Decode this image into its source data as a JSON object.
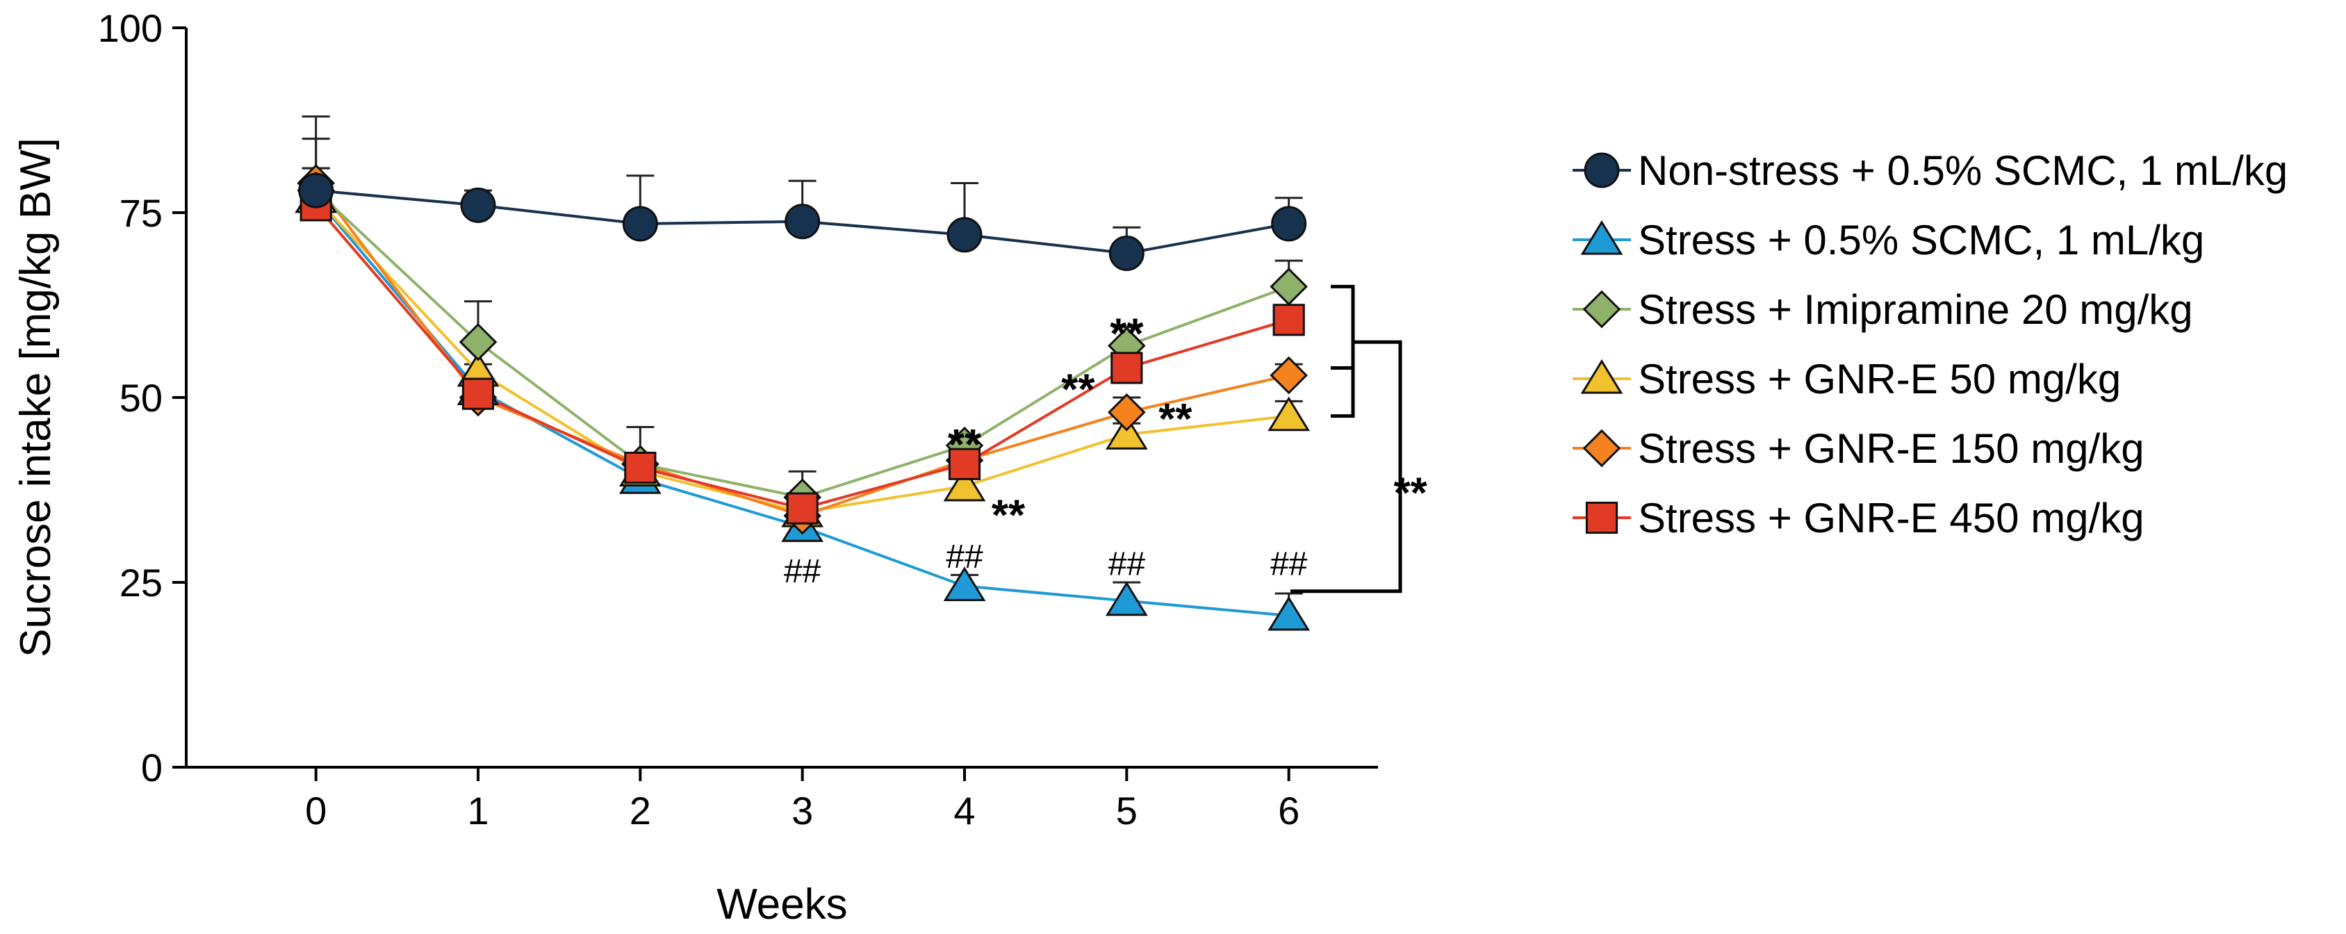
{
  "chart_data": {
    "type": "line",
    "title": "",
    "xlabel": "Weeks",
    "ylabel": "Sucrose intake [mg/kg BW]",
    "x": [
      0,
      1,
      2,
      3,
      4,
      5,
      6
    ],
    "x_ticks": [
      "0",
      "1",
      "2",
      "3",
      "4",
      "5",
      "6"
    ],
    "xlim": [
      -0.8,
      6.55
    ],
    "ylim": [
      0,
      100
    ],
    "y_ticks": [
      "0",
      "25",
      "50",
      "75",
      "100"
    ],
    "grid": false,
    "legend_position": "right",
    "series": [
      {
        "name": "Non-stress + 0.5% SCMC, 1 mL/kg",
        "marker": "circle",
        "color": "#17324f",
        "values": [
          78,
          76,
          73.5,
          73.8,
          72,
          69.5,
          73.5
        ],
        "errors": [
          10,
          2,
          6.5,
          5.5,
          7,
          3.5,
          3.5
        ]
      },
      {
        "name": "Stress + 0.5% SCMC, 1 mL/kg",
        "marker": "triangle",
        "color": "#1f9ad6",
        "values": [
          77,
          51,
          39,
          32.5,
          24.5,
          22.5,
          20.5
        ],
        "errors": [
          8,
          1.5,
          2,
          1,
          1.5,
          2.5,
          3
        ]
      },
      {
        "name": "Stress + Imipramine 20 mg/kg",
        "marker": "diamond",
        "color": "#8fb26a",
        "values": [
          78,
          57.5,
          41,
          36.5,
          43.5,
          57,
          65
        ],
        "errors": [
          3,
          5.5,
          1.5,
          3.5,
          1,
          2.5,
          3.5
        ]
      },
      {
        "name": "Stress + GNR-E 50 mg/kg",
        "marker": "triangle",
        "color": "#f2c12e",
        "values": [
          77,
          53.5,
          40,
          34.5,
          38,
          45,
          47.5
        ],
        "errors": [
          2,
          1,
          1,
          1,
          1.5,
          1.5,
          2
        ]
      },
      {
        "name": "Stress + GNR-E 150 mg/kg",
        "marker": "diamond",
        "color": "#f5821f",
        "values": [
          79,
          50,
          41,
          34,
          41.5,
          48,
          53
        ],
        "errors": [
          2,
          1,
          1,
          1,
          1,
          2,
          1.5
        ]
      },
      {
        "name": "Stress + GNR-E 450 mg/kg",
        "marker": "square",
        "color": "#e23b25",
        "values": [
          76,
          50.5,
          40.5,
          35,
          41,
          54,
          60.5
        ],
        "errors": [
          2,
          1,
          5.5,
          1.5,
          1,
          1.5,
          2
        ]
      }
    ],
    "annotations": [
      {
        "text": "##",
        "x": 3,
        "y": 26.5,
        "type": "hash"
      },
      {
        "text": "##",
        "x": 4,
        "y": 28.5,
        "type": "hash"
      },
      {
        "text": "##",
        "x": 5,
        "y": 27.5,
        "type": "hash"
      },
      {
        "text": "##",
        "x": 6,
        "y": 27.5,
        "type": "hash"
      },
      {
        "text": "**",
        "x": 4,
        "y": 45,
        "type": "star"
      },
      {
        "text": "**",
        "x": 4.27,
        "y": 35.5,
        "type": "star"
      },
      {
        "text": "**",
        "x": 4.7,
        "y": 52.5,
        "type": "star"
      },
      {
        "text": "**",
        "x": 5,
        "y": 60,
        "type": "star"
      },
      {
        "text": "**",
        "x": 5.3,
        "y": 48.5,
        "type": "star"
      },
      {
        "text": "**",
        "x": 6.75,
        "y": 38.5,
        "type": "star"
      }
    ]
  }
}
